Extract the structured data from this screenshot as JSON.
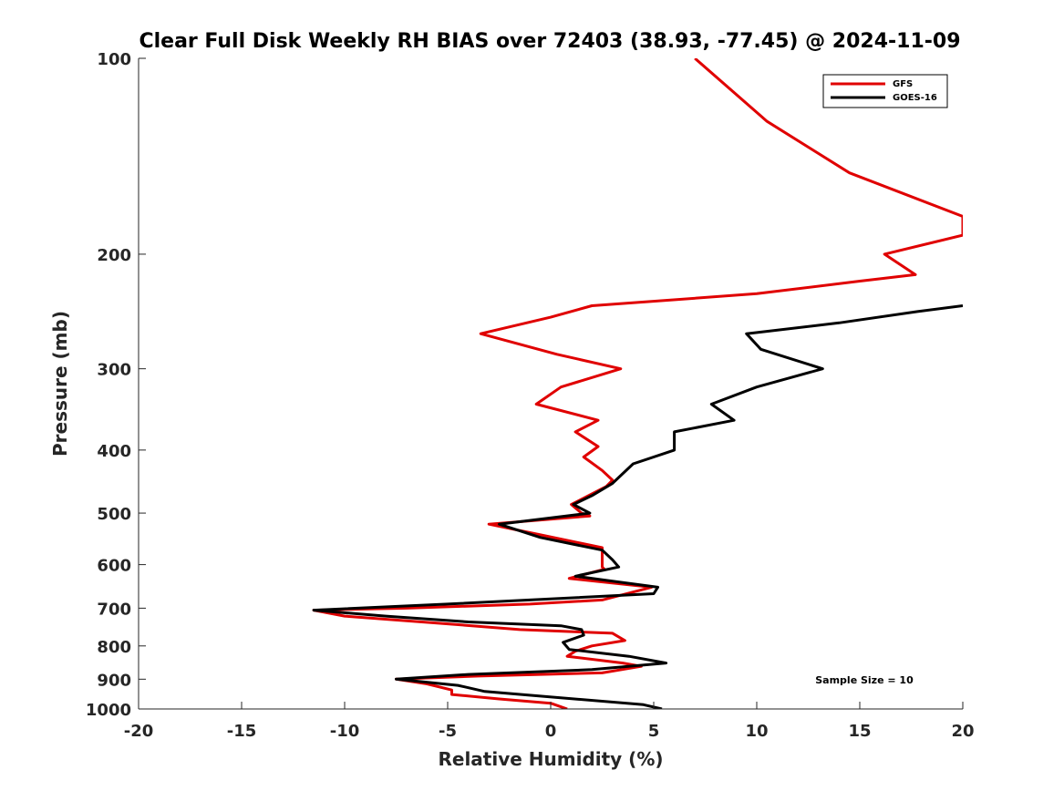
{
  "chart_data": {
    "type": "line",
    "title": "Clear Full Disk Weekly RH BIAS over 72403 (38.93, -77.45) @ 2024-11-09",
    "xlabel": "Relative Humidity (%)",
    "ylabel": "Pressure (mb)",
    "xlim": [
      -20,
      20
    ],
    "ylim": [
      1000,
      100
    ],
    "yscale": "log",
    "y_reversed": true,
    "grid": false,
    "xticks": [
      -20,
      -15,
      -10,
      -5,
      0,
      5,
      10,
      15,
      20
    ],
    "yticks": [
      100,
      200,
      300,
      400,
      500,
      600,
      700,
      800,
      900,
      1000
    ],
    "legend_position": "top-right",
    "annotation": "Sample Size = 10",
    "series": [
      {
        "name": "GFS",
        "color": "#e00000",
        "points": [
          [
            7.0,
            100
          ],
          [
            10.5,
            125
          ],
          [
            14.5,
            150
          ],
          [
            20.0,
            175
          ],
          [
            20.0,
            187
          ],
          [
            16.2,
            200
          ],
          [
            17.7,
            215
          ],
          [
            15.0,
            220
          ],
          [
            10.0,
            230
          ],
          [
            2.0,
            240
          ],
          [
            0.0,
            250
          ],
          [
            -3.4,
            265
          ],
          [
            0.3,
            285
          ],
          [
            3.4,
            300
          ],
          [
            0.5,
            320
          ],
          [
            -0.7,
            340
          ],
          [
            2.3,
            360
          ],
          [
            1.2,
            375
          ],
          [
            2.3,
            395
          ],
          [
            1.6,
            410
          ],
          [
            2.5,
            430
          ],
          [
            3.0,
            445
          ],
          [
            2.7,
            455
          ],
          [
            1.0,
            485
          ],
          [
            1.5,
            500
          ],
          [
            1.9,
            505
          ],
          [
            -3.0,
            520
          ],
          [
            -0.5,
            540
          ],
          [
            2.5,
            565
          ],
          [
            2.5,
            580
          ],
          [
            2.5,
            600
          ],
          [
            2.5,
            605
          ],
          [
            2.6,
            610
          ],
          [
            0.9,
            630
          ],
          [
            4.9,
            650
          ],
          [
            2.5,
            680
          ],
          [
            -1.0,
            690
          ],
          [
            -7.0,
            700
          ],
          [
            -11.5,
            705
          ],
          [
            -10.0,
            720
          ],
          [
            -5.0,
            740
          ],
          [
            -1.5,
            755
          ],
          [
            3.0,
            765
          ],
          [
            3.6,
            785
          ],
          [
            2.0,
            800
          ],
          [
            1.2,
            815
          ],
          [
            0.8,
            830
          ],
          [
            3.5,
            850
          ],
          [
            4.4,
            860
          ],
          [
            2.5,
            880
          ],
          [
            -3.5,
            890
          ],
          [
            -7.5,
            900
          ],
          [
            -6.0,
            915
          ],
          [
            -4.8,
            935
          ],
          [
            -4.8,
            950
          ],
          [
            -2.5,
            965
          ],
          [
            0.0,
            980
          ],
          [
            0.8,
            1000
          ]
        ]
      },
      {
        "name": "GOES-16",
        "color": "#000000",
        "points": [
          [
            20.0,
            240
          ],
          [
            17.8,
            245
          ],
          [
            14.0,
            255
          ],
          [
            9.5,
            265
          ],
          [
            10.2,
            280
          ],
          [
            13.2,
            300
          ],
          [
            10.0,
            320
          ],
          [
            7.8,
            340
          ],
          [
            8.9,
            360
          ],
          [
            6.0,
            375
          ],
          [
            6.0,
            390
          ],
          [
            6.0,
            400
          ],
          [
            4.0,
            420
          ],
          [
            3.0,
            450
          ],
          [
            2.0,
            470
          ],
          [
            1.1,
            485
          ],
          [
            1.9,
            500
          ],
          [
            -2.5,
            520
          ],
          [
            -0.5,
            545
          ],
          [
            2.5,
            570
          ],
          [
            3.0,
            590
          ],
          [
            3.3,
            605
          ],
          [
            1.2,
            625
          ],
          [
            5.2,
            650
          ],
          [
            5.0,
            665
          ],
          [
            -5.0,
            690
          ],
          [
            -11.5,
            705
          ],
          [
            -8.0,
            720
          ],
          [
            -4.0,
            735
          ],
          [
            0.5,
            745
          ],
          [
            1.5,
            755
          ],
          [
            1.6,
            770
          ],
          [
            0.6,
            790
          ],
          [
            0.9,
            810
          ],
          [
            3.8,
            830
          ],
          [
            5.6,
            850
          ],
          [
            2.0,
            870
          ],
          [
            -4.0,
            885
          ],
          [
            -7.5,
            900
          ],
          [
            -4.5,
            920
          ],
          [
            -3.2,
            940
          ],
          [
            4.5,
            985
          ],
          [
            5.4,
            1000
          ]
        ]
      }
    ]
  }
}
